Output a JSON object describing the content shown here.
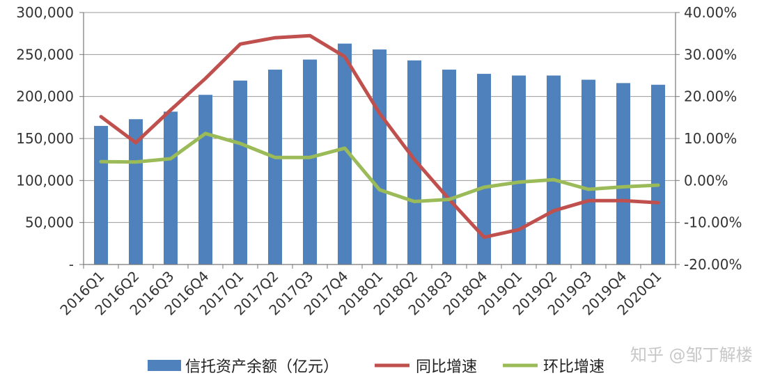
{
  "chart_data": {
    "type": "bar",
    "categories": [
      "2016Q1",
      "2016Q2",
      "2016Q3",
      "2016Q4",
      "2017Q1",
      "2017Q2",
      "2017Q3",
      "2017Q4",
      "2018Q1",
      "2018Q2",
      "2018Q3",
      "2018Q4",
      "2019Q1",
      "2019Q2",
      "2019Q3",
      "2019Q4",
      "2020Q1"
    ],
    "series": [
      {
        "name": "信托资产余额（亿元）",
        "kind": "bar",
        "axis": "left",
        "color": "#4f81bd",
        "values": [
          165000,
          173000,
          182000,
          202000,
          219000,
          232000,
          244000,
          263000,
          256000,
          243000,
          232000,
          227000,
          225000,
          225000,
          220000,
          216000,
          214000
        ]
      },
      {
        "name": "同比增速",
        "kind": "line",
        "axis": "right",
        "color": "#c0504d",
        "values": [
          15.2,
          9.0,
          16.8,
          24.3,
          32.5,
          34.0,
          34.5,
          29.5,
          16.0,
          5.0,
          -4.5,
          -13.5,
          -11.7,
          -7.2,
          -4.8,
          -4.8,
          -5.3
        ]
      },
      {
        "name": "环比增速",
        "kind": "line",
        "axis": "right",
        "color": "#9bbb59",
        "values": [
          4.5,
          4.4,
          5.2,
          11.2,
          8.8,
          5.5,
          5.5,
          7.7,
          -2.2,
          -5.0,
          -4.5,
          -1.6,
          -0.4,
          0.2,
          -2.1,
          -1.5,
          -1.1
        ]
      }
    ],
    "y_left": {
      "ylim": [
        0,
        300000
      ],
      "ticks": [
        "-",
        "50,000",
        "100,000",
        "150,000",
        "200,000",
        "250,000",
        "300,000"
      ]
    },
    "y_right": {
      "ylim": [
        -20,
        40
      ],
      "ticks": [
        "-20.00%",
        "-10.00%",
        "0.00%",
        "10.00%",
        "20.00%",
        "30.00%",
        "40.00%"
      ]
    },
    "title": "",
    "xlabel": "",
    "ylabel": "",
    "legend": "bottom",
    "grid": true
  },
  "watermark": "知乎 @邹丁解楼"
}
